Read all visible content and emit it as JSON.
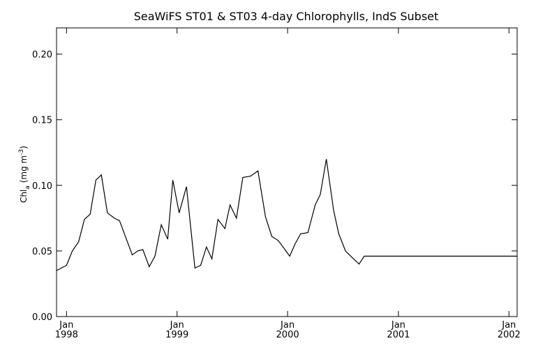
{
  "chart_data": {
    "type": "line",
    "title": "SeaWiFS ST01 & ST03 4-day Chlorophylls, IndS Subset",
    "ylabel": "Chl",
    "ylabel_sub": "a",
    "ylabel_units": "(mg m",
    "ylabel_exp": "-3",
    "ylabel_close": ")",
    "xlabel": "",
    "xlim": [
      "1997-11-29",
      "2002-01-28"
    ],
    "ylim": [
      0.0,
      0.22
    ],
    "x_ticks": [
      {
        "date": "1998-01-01",
        "month": "Jan",
        "year": "1998"
      },
      {
        "date": "1999-01-01",
        "month": "Jan",
        "year": "1999"
      },
      {
        "date": "2000-01-01",
        "month": "Jan",
        "year": "2000"
      },
      {
        "date": "2001-01-01",
        "month": "Jan",
        "year": "2001"
      },
      {
        "date": "2002-01-01",
        "month": "Jan",
        "year": "2002"
      }
    ],
    "y_ticks": [
      "0.00",
      "0.05",
      "0.10",
      "0.15",
      "0.20"
    ],
    "grid": false,
    "series": [
      {
        "x": [
          "1997-11-29",
          "1997-12-15",
          "1998-01-01",
          "1998-01-20",
          "1998-02-10",
          "1998-03-01",
          "1998-03-20",
          "1998-04-08",
          "1998-04-26",
          "1998-05-16",
          "1998-06-08",
          "1998-06-25",
          "1998-07-16",
          "1998-08-06",
          "1998-08-24",
          "1998-09-10",
          "1998-10-01",
          "1998-10-20",
          "1998-11-10",
          "1998-12-01",
          "1998-12-18",
          "1999-01-08",
          "1999-02-01",
          "1999-03-01",
          "1999-03-20",
          "1999-04-08",
          "1999-04-26",
          "1999-05-16",
          "1999-06-08",
          "1999-06-25",
          "1999-07-16",
          "1999-08-06",
          "1999-09-01",
          "1999-09-25",
          "1999-10-20",
          "1999-11-10",
          "1999-12-01",
          "1999-12-20",
          "2000-01-08",
          "2000-01-25",
          "2000-02-13",
          "2000-03-08",
          "2000-04-01",
          "2000-04-18",
          "2000-05-08",
          "2000-06-01",
          "2000-06-18",
          "2000-07-10",
          "2000-08-01",
          "2000-08-24",
          "2000-09-10",
          "2000-10-01",
          "2000-10-25",
          "2000-11-16",
          "2000-12-06",
          "2000-12-22",
          "2001-01-08",
          "2001-01-25",
          "2001-02-15",
          "2001-03-06",
          "2001-03-20",
          "2001-04-10",
          "2001-05-01",
          "2001-05-20",
          "2001-06-10",
          "2001-07-01",
          "2001-07-16",
          "2001-08-08",
          "2001-08-24",
          "2001-09-10",
          "2001-10-01",
          "2001-10-25",
          "2001-11-16",
          "2001-12-06",
          "2001-12-22",
          "2002-01-05",
          "2002-01-28"
        ],
        "values": [
          0.035,
          0.037,
          0.039,
          0.05,
          0.057,
          0.074,
          0.078,
          0.104,
          0.108,
          0.079,
          0.075,
          0.073,
          0.06,
          0.047,
          0.05,
          0.051,
          0.038,
          0.046,
          0.07,
          0.059,
          0.104,
          0.079,
          0.099,
          0.037,
          0.039,
          0.053,
          0.044,
          0.074,
          0.067,
          0.085,
          0.075,
          0.106,
          0.107,
          0.111,
          0.076,
          0.061,
          0.058,
          0.052,
          0.046,
          0.055,
          0.063,
          0.064,
          0.085,
          0.093,
          0.12,
          0.081,
          0.063,
          0.05,
          0.045,
          0.04,
          0.046,
          0.046,
          0.046,
          0.046,
          0.046,
          0.046,
          0.046,
          0.046,
          0.046,
          0.046,
          0.046,
          0.046,
          0.046,
          0.046,
          0.046,
          0.046,
          0.046,
          0.046,
          0.046,
          0.046,
          0.046,
          0.046,
          0.046,
          0.046,
          0.046,
          0.046,
          0.046
        ]
      }
    ]
  }
}
